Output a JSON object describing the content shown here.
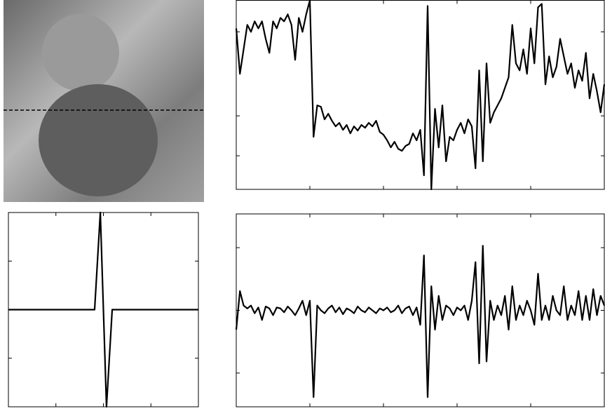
{
  "chart_data": [
    {
      "type": "line",
      "color": "#000000",
      "x": [
        0,
        2.5,
        5,
        7.5,
        10,
        12.5,
        15,
        17.5,
        20,
        22.5,
        25,
        27.5,
        30,
        32.5,
        35,
        37.5,
        40,
        42.5,
        45,
        47.5,
        50,
        52.5,
        55,
        57.5,
        60,
        62.5,
        65,
        67.5,
        70,
        72.5,
        75,
        77.5,
        80,
        82.5,
        85,
        87.5,
        90,
        92.5,
        95,
        97.5,
        100,
        102.5,
        105,
        107.5,
        110,
        112.5,
        115,
        117.5,
        120,
        122.5,
        125,
        127.5,
        130,
        132.5,
        135,
        137.5,
        140,
        142.5,
        145,
        147.5,
        150,
        152.5,
        155,
        157.5,
        160,
        162.5,
        165,
        167.5,
        170,
        172.5,
        175,
        177.5,
        180,
        182.5,
        185,
        187.5,
        190,
        192.5,
        195,
        197.5,
        200,
        202.5,
        205,
        207.5,
        210,
        212.5,
        215,
        217.5,
        220,
        222.5,
        225,
        227.5,
        230,
        232.5,
        235,
        237.5,
        240,
        242.5,
        245,
        247.5,
        250
      ],
      "values": [
        230,
        165,
        200,
        235,
        225,
        240,
        230,
        240,
        215,
        195,
        240,
        230,
        245,
        240,
        250,
        235,
        185,
        245,
        225,
        250,
        270,
        75,
        120,
        118,
        100,
        108,
        98,
        90,
        95,
        85,
        92,
        80,
        90,
        84,
        92,
        88,
        95,
        90,
        98,
        82,
        78,
        70,
        60,
        68,
        58,
        55,
        62,
        65,
        80,
        70,
        85,
        20,
        262,
        0,
        115,
        60,
        120,
        40,
        75,
        70,
        85,
        95,
        80,
        100,
        90,
        30,
        170,
        40,
        180,
        95,
        110,
        120,
        130,
        145,
        160,
        235,
        180,
        170,
        200,
        165,
        230,
        180,
        260,
        265,
        150,
        190,
        160,
        175,
        215,
        190,
        165,
        180,
        145,
        170,
        155,
        195,
        130,
        165,
        140,
        110,
        150
      ],
      "xlim": [
        0,
        250
      ],
      "ylim": [
        0,
        270
      ],
      "xticks": [
        50,
        100,
        150,
        200
      ],
      "yticks": [
        48,
        105,
        225
      ]
    },
    {
      "type": "line",
      "color": "#000000",
      "x": [
        -4,
        -0.37,
        -0.13,
        0.13,
        0.37,
        4
      ],
      "values": [
        0,
        0,
        1,
        -1,
        0,
        0
      ],
      "xlim": [
        -4,
        4
      ],
      "ylim": [
        -1,
        1
      ],
      "xticks": [
        -2,
        0,
        2
      ],
      "yticks": [
        -0.5,
        0,
        0.5
      ]
    },
    {
      "type": "line",
      "color": "#000000",
      "x": [
        0,
        2.5,
        5,
        7.5,
        10,
        12.5,
        15,
        17.5,
        20,
        22.5,
        25,
        27.5,
        30,
        32.5,
        35,
        37.5,
        40,
        42.5,
        45,
        47.5,
        50,
        52.5,
        55,
        57.5,
        60,
        62.5,
        65,
        67.5,
        70,
        72.5,
        75,
        77.5,
        80,
        82.5,
        85,
        87.5,
        90,
        92.5,
        95,
        97.5,
        100,
        102.5,
        105,
        107.5,
        110,
        112.5,
        115,
        117.5,
        120,
        122.5,
        125,
        127.5,
        130,
        132.5,
        135,
        137.5,
        140,
        142.5,
        145,
        147.5,
        150,
        152.5,
        155,
        157.5,
        160,
        162.5,
        165,
        167.5,
        170,
        172.5,
        175,
        177.5,
        180,
        182.5,
        185,
        187.5,
        190,
        192.5,
        195,
        197.5,
        200,
        202.5,
        205,
        207.5,
        210,
        212.5,
        215,
        217.5,
        220,
        222.5,
        225,
        227.5,
        230,
        232.5,
        235,
        237.5,
        240,
        242.5,
        245,
        247.5,
        250
      ],
      "values": [
        -0.2,
        0.2,
        0.05,
        0.02,
        0.05,
        -0.03,
        0.03,
        -0.1,
        0.04,
        0.02,
        -0.05,
        0.03,
        0.02,
        -0.02,
        0.04,
        0,
        -0.05,
        0.02,
        0.1,
        -0.05,
        0.1,
        -0.9,
        0.05,
        0,
        -0.03,
        0.02,
        0.05,
        -0.02,
        0.03,
        -0.04,
        0.02,
        0,
        -0.03,
        0.04,
        0,
        -0.02,
        0.03,
        0,
        -0.03,
        0.02,
        0,
        0.03,
        -0.02,
        0,
        0.05,
        -0.03,
        0.02,
        0.04,
        -0.05,
        0.03,
        -0.15,
        0.57,
        -0.9,
        0.25,
        -0.2,
        0.15,
        -0.1,
        0.05,
        0.02,
        -0.05,
        0.03,
        0,
        0.05,
        -0.1,
        0.1,
        0.5,
        -0.55,
        0.67,
        -0.53,
        0.1,
        -0.1,
        0.05,
        -0.05,
        0.15,
        -0.2,
        0.25,
        -0.1,
        0.05,
        -0.05,
        0.1,
        0,
        -0.15,
        0.38,
        -0.1,
        0.05,
        -0.1,
        0.15,
        0,
        -0.05,
        0.25,
        -0.1,
        0.05,
        -0.05,
        0.2,
        -0.1,
        0.15,
        -0.1,
        0.22,
        -0.05,
        0.15,
        0.05
      ],
      "xlim": [
        0,
        250
      ],
      "ylim": [
        -1,
        1
      ],
      "xticks": [
        50,
        100,
        150,
        200
      ],
      "yticks": [
        -0.65,
        0,
        0.65
      ]
    }
  ]
}
